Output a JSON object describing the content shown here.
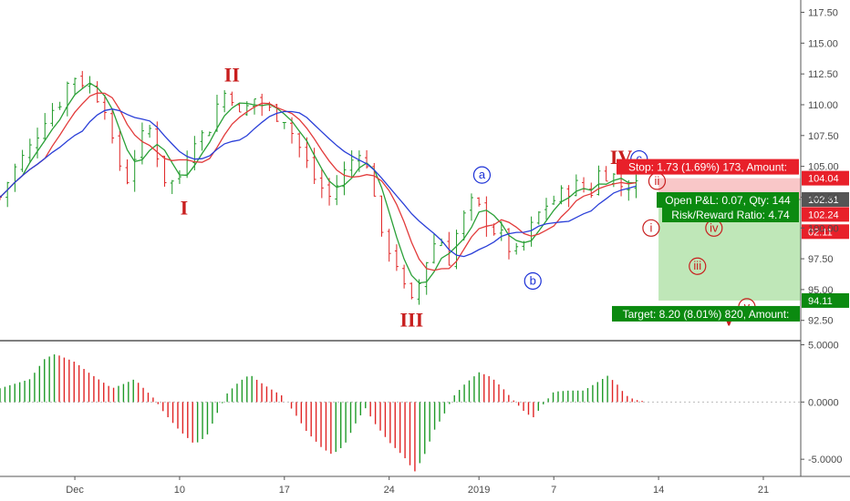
{
  "chart_data": {
    "type": "candlestick",
    "price_axis": {
      "ticks": [
        "117.50",
        "115.00",
        "112.50",
        "110.00",
        "107.50",
        "105.00",
        "102.50",
        "100.00",
        "97.50",
        "95.00",
        "92.50"
      ],
      "range": [
        91.0,
        118.5
      ]
    },
    "osc_axis": {
      "ticks": [
        "5.0000",
        "0.0000",
        "-5.0000"
      ],
      "range": [
        -6.5,
        5.2
      ]
    },
    "time_axis": {
      "labels": [
        {
          "text": "Dec",
          "day": 0
        },
        {
          "text": "10",
          "day": 7
        },
        {
          "text": "17",
          "day": 14
        },
        {
          "text": "24",
          "day": 21
        },
        {
          "text": "2019",
          "day": 27
        },
        {
          "text": "7",
          "day": 32
        },
        {
          "text": "14",
          "day": 39
        },
        {
          "text": "21",
          "day": 46
        }
      ],
      "range_days": [
        -5,
        48.5
      ]
    },
    "price_path": [
      [
        -5,
        102.5
      ],
      [
        -4.2,
        104.5
      ],
      [
        -3,
        106.5
      ],
      [
        -2,
        109
      ],
      [
        -1,
        110.3
      ],
      [
        -0.2,
        112.5
      ],
      [
        1,
        111.5
      ],
      [
        2,
        110
      ],
      [
        2.6,
        106
      ],
      [
        3.5,
        104
      ],
      [
        4.3,
        107
      ],
      [
        5,
        108
      ],
      [
        6,
        104
      ],
      [
        6.8,
        103.5
      ],
      [
        7.5,
        106
      ],
      [
        8,
        107.5
      ],
      [
        8.8,
        107.5
      ],
      [
        9.5,
        110
      ],
      [
        10.3,
        111.5
      ],
      [
        11,
        109
      ],
      [
        12,
        110.5
      ],
      [
        13,
        109.5
      ],
      [
        14,
        109
      ],
      [
        15,
        106.5
      ],
      [
        16,
        104
      ],
      [
        17,
        102.5
      ],
      [
        18,
        104.5
      ],
      [
        19,
        106.5
      ],
      [
        20,
        103
      ],
      [
        20.5,
        99
      ],
      [
        21.3,
        98
      ],
      [
        22,
        95
      ],
      [
        22.5,
        93.8
      ],
      [
        23,
        95.5
      ],
      [
        23.6,
        97.8
      ],
      [
        24.3,
        99.5
      ],
      [
        25,
        97.5
      ],
      [
        25.5,
        99.5
      ],
      [
        26.4,
        102
      ],
      [
        27,
        101.5
      ],
      [
        27.6,
        100.5
      ],
      [
        28.2,
        99.5
      ],
      [
        28.8,
        99
      ],
      [
        29.3,
        97.5
      ],
      [
        29.9,
        98.5
      ],
      [
        30.5,
        100
      ],
      [
        31.3,
        101.8
      ],
      [
        32.3,
        102.5
      ],
      [
        33.3,
        103.5
      ],
      [
        34.5,
        103
      ],
      [
        35,
        104.5
      ],
      [
        35.8,
        104.5
      ],
      [
        36.6,
        103.3
      ],
      [
        37.3,
        103.8
      ],
      [
        37.9,
        102.4
      ]
    ],
    "osc_path": [
      [
        -5,
        1.2
      ],
      [
        -3,
        2.0
      ],
      [
        -2,
        3.8
      ],
      [
        -1.3,
        4.2
      ],
      [
        0,
        3.5
      ],
      [
        1,
        2.5
      ],
      [
        1.8,
        1.8
      ],
      [
        2.5,
        1.2
      ],
      [
        3.3,
        1.6
      ],
      [
        4,
        2.0
      ],
      [
        4.6,
        1.2
      ],
      [
        5.3,
        0.3
      ],
      [
        6,
        -1.0
      ],
      [
        7,
        -2.5
      ],
      [
        8,
        -3.7
      ],
      [
        8.8,
        -3.0
      ],
      [
        9.5,
        -1.0
      ],
      [
        10.2,
        0.8
      ],
      [
        11,
        1.8
      ],
      [
        11.7,
        2.4
      ],
      [
        12.3,
        1.8
      ],
      [
        13,
        1.2
      ],
      [
        13.8,
        0.6
      ],
      [
        14.6,
        -0.8
      ],
      [
        15.5,
        -2.6
      ],
      [
        16.5,
        -4.0
      ],
      [
        17.2,
        -4.6
      ],
      [
        18,
        -3.8
      ],
      [
        18.7,
        -2.0
      ],
      [
        19.4,
        -0.5
      ],
      [
        20,
        -1.8
      ],
      [
        21,
        -3.5
      ],
      [
        22,
        -4.8
      ],
      [
        22.7,
        -6.1
      ],
      [
        23.3,
        -4.8
      ],
      [
        24,
        -2.5
      ],
      [
        24.7,
        -1.0
      ],
      [
        25.3,
        0.5
      ],
      [
        26,
        1.5
      ],
      [
        27,
        2.6
      ],
      [
        27.8,
        2.2
      ],
      [
        28.6,
        1.2
      ],
      [
        29.2,
        0.3
      ],
      [
        30,
        -0.8
      ],
      [
        30.6,
        -1.4
      ],
      [
        31.3,
        -0.2
      ],
      [
        32,
        0.9
      ],
      [
        33,
        1.0
      ],
      [
        34,
        1.0
      ],
      [
        35,
        1.8
      ],
      [
        35.6,
        2.3
      ],
      [
        36.2,
        1.6
      ],
      [
        36.8,
        0.6
      ],
      [
        37.4,
        0.2
      ],
      [
        37.9,
        0.1
      ]
    ],
    "wave_labels": [
      {
        "text": "I",
        "day": 7.3,
        "price": 101.1,
        "style": "red"
      },
      {
        "text": "II",
        "day": 10.5,
        "price": 111.9,
        "style": "red"
      },
      {
        "text": "III",
        "day": 22.5,
        "price": 92.0,
        "style": "red"
      },
      {
        "text": "IV",
        "day": 36.5,
        "price": 105.2,
        "style": "red"
      },
      {
        "text": "V",
        "day": 43.7,
        "price": 92.1,
        "style": "red"
      },
      {
        "text": "a",
        "day": 27.2,
        "price": 104.0,
        "style": "blue"
      },
      {
        "text": "b",
        "day": 30.6,
        "price": 95.4,
        "style": "blue"
      },
      {
        "text": "c",
        "day": 37.7,
        "price": 105.3,
        "style": "blue"
      },
      {
        "text": "i",
        "day": 38.5,
        "price": 99.7,
        "style": "red-sm"
      },
      {
        "text": "ii",
        "day": 38.9,
        "price": 103.5,
        "style": "red-sm"
      },
      {
        "text": "iii",
        "day": 41.6,
        "price": 96.6,
        "style": "red-sm"
      },
      {
        "text": "iv",
        "day": 42.7,
        "price": 99.7,
        "style": "red-sm"
      },
      {
        "text": "v",
        "day": 44.9,
        "price": 93.3,
        "style": "red-sm"
      }
    ],
    "position": {
      "entry": 102.31,
      "stop": 104.04,
      "target": 94.11,
      "start_day": 39.0,
      "end_day": 48.5
    },
    "info_boxes": {
      "stop": "Stop: 1.73 (1.69%) 173, Amount:",
      "open_pl": "Open P&L: 0.07, Qty: 144",
      "risk_reward": "Risk/Reward Ratio: 4.74",
      "target": "Target: 8.20 (8.01%) 820, Amount:"
    },
    "price_tags": [
      {
        "text": "104.04",
        "price": 104.04,
        "color": "#e8202a"
      },
      {
        "text": "102.31",
        "price": 102.31,
        "color": "#555555"
      },
      {
        "text": "102.24",
        "price": 101.1,
        "color": "#e8202a"
      },
      {
        "text": "02:11",
        "price": 99.7,
        "color": "#e8202a"
      },
      {
        "text": "94.11",
        "price": 94.11,
        "color": "#0b8a10"
      }
    ],
    "colors": {
      "up": "#1f9a28",
      "down": "#e02424",
      "ma_fast": "#2aa037",
      "ma_mid": "#e23b3b",
      "ma_slow": "#2a3fd8",
      "stop_zone": "#f9c7c8",
      "target_zone": "#bfe7b8"
    }
  }
}
